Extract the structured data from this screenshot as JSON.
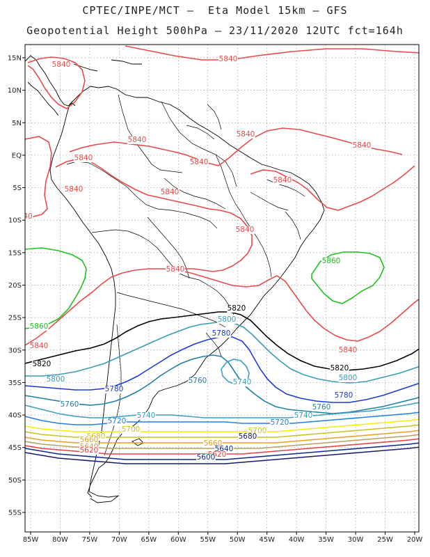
{
  "header": {
    "line1": "CPTEC/INPE/MCT –  Eta Model 15km – GFS",
    "line2": "Geopotential Height 500hPa – 23/11/2020 12UTC fct=164h"
  },
  "axes": {
    "lat_ticks": [
      "15N",
      "10N",
      "5N",
      "EQ",
      "5S",
      "10S",
      "15S",
      "20S",
      "25S",
      "30S",
      "35S",
      "40S",
      "45S",
      "50S",
      "55S"
    ],
    "lon_ticks": [
      "85W",
      "80W",
      "75W",
      "70W",
      "65W",
      "60W",
      "55W",
      "50W",
      "45W",
      "40W",
      "35W",
      "30W",
      "25W",
      "20W"
    ]
  },
  "contour_colors": {
    "5580": "#1a1a6e",
    "5600": "#0d2a8a",
    "5620": "#e84040",
    "5640": "#b8a060",
    "5660": "#e8a020",
    "5680": "#c8c020",
    "5700": "#f0f000",
    "5720": "#2080e0",
    "5740": "#3aa0c0",
    "5760": "#1e7fa8",
    "5780": "#1a3ad8",
    "5800": "#3a9ab8",
    "5820": "#000000",
    "5840": "#e84a4a",
    "5860": "#20c020"
  },
  "contour_labels": [
    {
      "text": "5840",
      "color": "#e84a4a"
    },
    {
      "text": "5840",
      "color": "#e84a4a"
    },
    {
      "text": "5840",
      "color": "#e84a4a"
    },
    {
      "text": "5840",
      "color": "#e84a4a"
    },
    {
      "text": "5840",
      "color": "#e84a4a"
    },
    {
      "text": "5840",
      "color": "#e84a4a"
    },
    {
      "text": "5840",
      "color": "#e84a4a"
    },
    {
      "text": "5840",
      "color": "#e84a4a"
    },
    {
      "text": "5840",
      "color": "#e84a4a"
    },
    {
      "text": "5840",
      "color": "#e84a4a"
    },
    {
      "text": "5840",
      "color": "#e84a4a"
    },
    {
      "text": "5840",
      "color": "#e84a4a"
    },
    {
      "text": "5840",
      "color": "#e84a4a"
    },
    {
      "text": "5840",
      "color": "#e84a4a"
    },
    {
      "text": "40",
      "color": "#e84a4a"
    },
    {
      "text": "5860",
      "color": "#20c020"
    },
    {
      "text": "5860",
      "color": "#20c020"
    },
    {
      "text": "5820",
      "color": "#000000"
    },
    {
      "text": "5820",
      "color": "#000000"
    },
    {
      "text": "5820",
      "color": "#000000"
    },
    {
      "text": "5800",
      "color": "#3a9ab8"
    },
    {
      "text": "5800",
      "color": "#3a9ab8"
    },
    {
      "text": "5800",
      "color": "#3a9ab8"
    },
    {
      "text": "5780",
      "color": "#1a3ad8"
    },
    {
      "text": "5780",
      "color": "#1a3ad8"
    },
    {
      "text": "5780",
      "color": "#1a3ad8"
    },
    {
      "text": "5760",
      "color": "#1e7fa8"
    },
    {
      "text": "5760",
      "color": "#1e7fa8"
    },
    {
      "text": "5760",
      "color": "#1e7fa8"
    },
    {
      "text": "5740",
      "color": "#3aa0c0"
    },
    {
      "text": "5740",
      "color": "#3aa0c0"
    },
    {
      "text": "5740",
      "color": "#3aa0c0"
    },
    {
      "text": "5720",
      "color": "#2080e0"
    },
    {
      "text": "5720",
      "color": "#2080e0"
    },
    {
      "text": "5700",
      "color": "#c8c020"
    },
    {
      "text": "5700",
      "color": "#c8c020"
    },
    {
      "text": "5680",
      "color": "#c8c020"
    },
    {
      "text": "5680",
      "color": "#1a1a6e"
    },
    {
      "text": "5660",
      "color": "#e8a020"
    },
    {
      "text": "5660",
      "color": "#e8a020"
    },
    {
      "text": "5640",
      "color": "#b8a060"
    },
    {
      "text": "5640",
      "color": "#0d2a8a"
    },
    {
      "text": "5620",
      "color": "#e84040"
    },
    {
      "text": "5620",
      "color": "#e84040"
    },
    {
      "text": "5600",
      "color": "#0d2a8a"
    }
  ]
}
